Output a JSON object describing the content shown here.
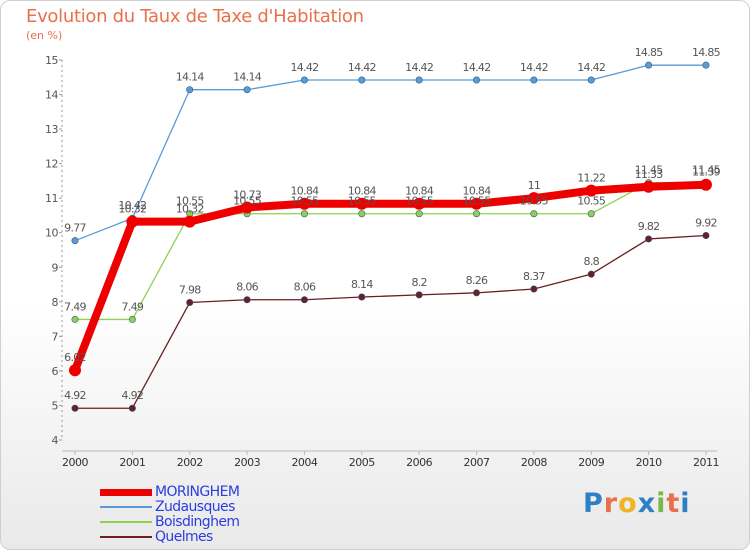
{
  "header": {
    "title": "Evolution du Taux de Taxe d'Habitation",
    "subtitle": "(en %)"
  },
  "logo": {
    "text": "Proxiti",
    "letter_colors": [
      "#2e7fc4",
      "#e8704a",
      "#f0b323",
      "#2e7fc4",
      "#7ab648",
      "#e8704a",
      "#2e7fc4"
    ]
  },
  "chart_data": {
    "type": "line",
    "title": "Evolution du Taux de Taxe d'Habitation",
    "subtitle": "(en %)",
    "xlabel": "",
    "ylabel": "",
    "x": [
      "2000",
      "2001",
      "2002",
      "2003",
      "2004",
      "2005",
      "2006",
      "2007",
      "2008",
      "2009",
      "2010",
      "2011"
    ],
    "ylim": [
      4,
      15
    ],
    "yticks": [
      "4",
      "5",
      "6",
      "7",
      "8",
      "9",
      "10",
      "11",
      "12",
      "13",
      "14",
      "15"
    ],
    "grid": false,
    "legend_position": "bottom-left",
    "series": [
      {
        "name": "MORINGHEM",
        "color": "#ee0000",
        "values": [
          6.02,
          10.32,
          10.32,
          10.73,
          10.84,
          10.84,
          10.84,
          10.84,
          11,
          11.22,
          11.33,
          11.39
        ],
        "labels": [
          "6.02",
          "10.32",
          "10.32",
          "10.73",
          "10.84",
          "10.84",
          "10.84",
          "10.84",
          "11",
          "11.22",
          "11.33",
          "11.39"
        ]
      },
      {
        "name": "Zudausques",
        "color": "#5b9bd5",
        "values": [
          9.77,
          10.42,
          14.14,
          14.14,
          14.42,
          14.42,
          14.42,
          14.42,
          14.42,
          14.42,
          14.85,
          14.85
        ],
        "labels": [
          "9.77",
          "10.42",
          "14.14",
          "14.14",
          "14.42",
          "14.42",
          "14.42",
          "14.42",
          "14.42",
          "14.42",
          "14.85",
          "14.85"
        ]
      },
      {
        "name": "Boisdinghem",
        "color": "#8fd14f",
        "values": [
          7.49,
          7.49,
          10.55,
          10.55,
          10.55,
          10.55,
          10.55,
          10.55,
          10.55,
          10.55,
          11.45,
          11.45
        ],
        "labels": [
          "7.49",
          "7.49",
          "10.55",
          "10.55",
          "10.55",
          "10.55",
          "10.55",
          "10.55",
          "10.55",
          "10.55",
          "11.45",
          "11.45"
        ]
      },
      {
        "name": "Quelmes",
        "color": "#6b1f1f",
        "values": [
          4.92,
          4.92,
          7.98,
          8.06,
          8.06,
          8.14,
          8.2,
          8.26,
          8.37,
          8.8,
          9.82,
          9.92
        ],
        "labels": [
          "4.92",
          "4.92",
          "7.98",
          "8.06",
          "8.06",
          "8.14",
          "8.2",
          "8.26",
          "8.37",
          "8.8",
          "9.82",
          "9.92"
        ]
      }
    ]
  }
}
